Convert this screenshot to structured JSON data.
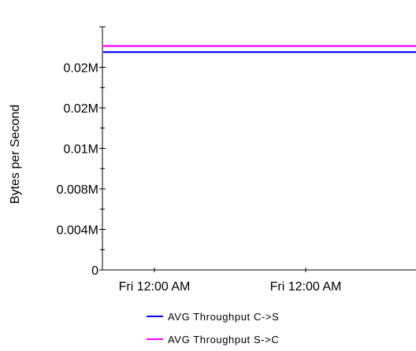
{
  "chart_data": {
    "type": "line",
    "title": "",
    "xlabel": "",
    "ylabel": "Bytes per Second",
    "ylim": [
      0,
      0.024
    ],
    "y_tick_values": [
      0,
      0.004,
      0.008,
      0.012,
      0.016,
      0.02
    ],
    "y_tick_labels": [
      "0",
      "0.004M",
      "0.008M",
      "0.01M",
      "0.02M",
      "0.02M"
    ],
    "x": [
      "Fri 12:00 AM",
      "Fri 12:00 AM"
    ],
    "x_tick_labels": [
      "Fri 12:00 AM",
      "Fri 12:00 AM"
    ],
    "series": [
      {
        "name": "AVG Throughput C->S",
        "color": "#0000ff",
        "values": [
          0.0215,
          0.0215
        ]
      },
      {
        "name": "AVG Throughput S->C",
        "color": "#ff00ff",
        "values": [
          0.0221,
          0.0221
        ]
      }
    ],
    "legend_position": "bottom",
    "grid": false
  }
}
